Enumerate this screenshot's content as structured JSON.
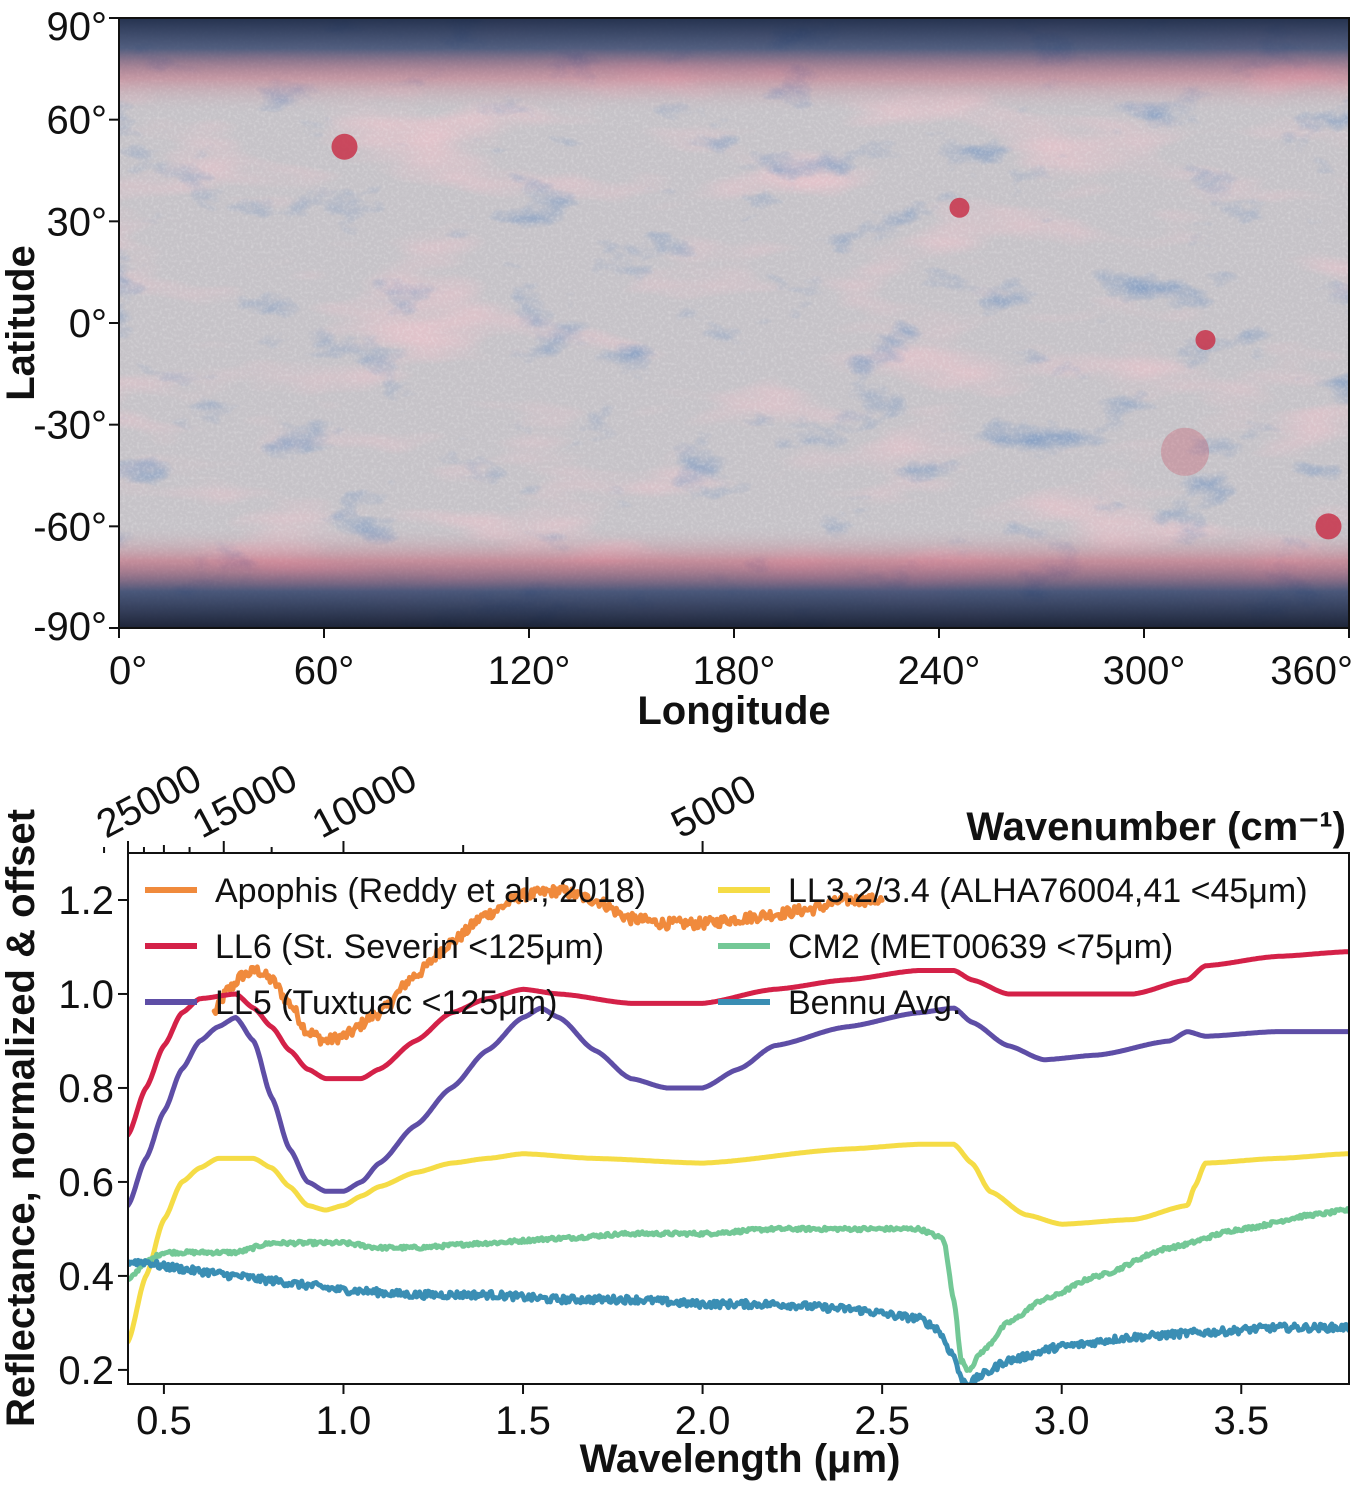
{
  "chart_data": [
    {
      "type": "heatmap",
      "xlabel": "Longitude",
      "ylabel": "Latitude",
      "xlim": [
        0,
        360
      ],
      "ylim": [
        -90,
        90
      ],
      "x_ticks": [
        "0°",
        "60°",
        "120°",
        "180°",
        "240°",
        "300°",
        "360°"
      ],
      "x_tick_values": [
        0,
        60,
        120,
        180,
        240,
        300,
        360
      ],
      "y_ticks": [
        "90°",
        "60°",
        "30°",
        "0°",
        "-30°",
        "-60°",
        "-90°"
      ],
      "y_tick_values": [
        90,
        60,
        30,
        0,
        -30,
        -60,
        -90
      ],
      "colors": {
        "high": "#c8324a",
        "neutral": "#c8c8cc",
        "low": "#3c5a8c",
        "pole": "#1c2a48"
      },
      "red_spots": [
        {
          "lon": 66,
          "lat": 52
        },
        {
          "lon": 246,
          "lat": 34
        },
        {
          "lon": 318,
          "lat": -5
        },
        {
          "lon": 354,
          "lat": -60
        },
        {
          "lon": 312,
          "lat": -38
        }
      ]
    },
    {
      "type": "line",
      "xlabel": "Wavelength (μm)",
      "ylabel": "Reflectance, normalized & offset",
      "top_axis_label": "Wavenumber (cm⁻¹)",
      "xlim": [
        0.4,
        3.8
      ],
      "ylim": [
        0.17,
        1.3
      ],
      "x_ticks": [
        "0.5",
        "1.0",
        "1.5",
        "2.0",
        "2.5",
        "3.0",
        "3.5"
      ],
      "x_tick_values": [
        0.5,
        1.0,
        1.5,
        2.0,
        2.5,
        3.0,
        3.5
      ],
      "y_ticks": [
        "0.2",
        "0.4",
        "0.6",
        "0.8",
        "1.0",
        "1.2"
      ],
      "y_tick_values": [
        0.2,
        0.4,
        0.6,
        0.8,
        1.0,
        1.2
      ],
      "top_ticks": [
        "25000",
        "15000",
        "10000",
        "5000"
      ],
      "top_tick_values": [
        25000,
        15000,
        10000,
        5000
      ],
      "top_minor_ticks": [
        20000,
        7500
      ],
      "legend": "top",
      "series": [
        {
          "name": "Apophis (Reddy et al., 2018)",
          "color": "#f08a3c",
          "noise": 0.012,
          "x": [
            0.64,
            0.68,
            0.72,
            0.76,
            0.8,
            0.85,
            0.9,
            0.95,
            1.0,
            1.1,
            1.2,
            1.3,
            1.4,
            1.5,
            1.6,
            1.7,
            1.8,
            1.9,
            2.0,
            2.1,
            2.2,
            2.3,
            2.4,
            2.5
          ],
          "y": [
            0.96,
            1.01,
            1.04,
            1.05,
            1.03,
            0.98,
            0.92,
            0.9,
            0.91,
            0.96,
            1.04,
            1.11,
            1.17,
            1.21,
            1.22,
            1.2,
            1.16,
            1.15,
            1.15,
            1.16,
            1.17,
            1.18,
            1.2,
            1.2
          ]
        },
        {
          "name": "LL6 (St. Severin <125μm)",
          "color": "#d42148",
          "noise": 0.0,
          "x": [
            0.4,
            0.45,
            0.5,
            0.55,
            0.6,
            0.7,
            0.75,
            0.8,
            0.85,
            0.9,
            0.95,
            1.0,
            1.05,
            1.1,
            1.2,
            1.3,
            1.4,
            1.5,
            1.6,
            1.8,
            2.0,
            2.2,
            2.4,
            2.6,
            2.7,
            2.75,
            2.85,
            3.0,
            3.2,
            3.35,
            3.4,
            3.6,
            3.8
          ],
          "y": [
            0.7,
            0.8,
            0.89,
            0.96,
            0.99,
            1.0,
            0.97,
            0.93,
            0.88,
            0.84,
            0.82,
            0.82,
            0.82,
            0.84,
            0.9,
            0.96,
            0.99,
            1.01,
            1.0,
            0.98,
            0.98,
            1.01,
            1.03,
            1.05,
            1.05,
            1.03,
            1.0,
            1.0,
            1.0,
            1.03,
            1.06,
            1.08,
            1.09
          ]
        },
        {
          "name": "LL5 (Tuxtuac <125μm)",
          "color": "#5e4ea6",
          "noise": 0.0,
          "x": [
            0.4,
            0.45,
            0.5,
            0.55,
            0.6,
            0.65,
            0.7,
            0.75,
            0.8,
            0.85,
            0.9,
            0.95,
            1.0,
            1.05,
            1.1,
            1.2,
            1.3,
            1.4,
            1.5,
            1.55,
            1.6,
            1.7,
            1.8,
            1.9,
            2.0,
            2.1,
            2.2,
            2.4,
            2.6,
            2.7,
            2.75,
            2.85,
            2.95,
            3.1,
            3.3,
            3.35,
            3.4,
            3.6,
            3.8
          ],
          "y": [
            0.55,
            0.65,
            0.75,
            0.84,
            0.9,
            0.93,
            0.95,
            0.9,
            0.78,
            0.67,
            0.6,
            0.58,
            0.58,
            0.6,
            0.64,
            0.72,
            0.8,
            0.88,
            0.95,
            0.97,
            0.95,
            0.88,
            0.82,
            0.8,
            0.8,
            0.84,
            0.89,
            0.93,
            0.96,
            0.97,
            0.94,
            0.89,
            0.86,
            0.87,
            0.9,
            0.92,
            0.91,
            0.92,
            0.92
          ]
        },
        {
          "name": "LL3.2/3.4 (ALHA76004,41 <45μm)",
          "color": "#f5dc46",
          "noise": 0.0,
          "x": [
            0.4,
            0.45,
            0.5,
            0.55,
            0.6,
            0.65,
            0.7,
            0.75,
            0.8,
            0.85,
            0.9,
            0.95,
            1.0,
            1.05,
            1.1,
            1.2,
            1.3,
            1.4,
            1.5,
            1.7,
            2.0,
            2.4,
            2.6,
            2.7,
            2.75,
            2.8,
            2.9,
            3.0,
            3.2,
            3.35,
            3.37,
            3.4,
            3.6,
            3.8
          ],
          "y": [
            0.26,
            0.4,
            0.52,
            0.6,
            0.63,
            0.65,
            0.65,
            0.65,
            0.63,
            0.59,
            0.55,
            0.54,
            0.55,
            0.57,
            0.59,
            0.62,
            0.64,
            0.65,
            0.66,
            0.65,
            0.64,
            0.67,
            0.68,
            0.68,
            0.64,
            0.58,
            0.53,
            0.51,
            0.52,
            0.55,
            0.59,
            0.64,
            0.65,
            0.66
          ]
        },
        {
          "name": "CM2 (MET00639 <75μm)",
          "color": "#73c896",
          "noise": 0.004,
          "x": [
            0.4,
            0.45,
            0.5,
            0.55,
            0.6,
            0.7,
            0.8,
            0.9,
            1.0,
            1.1,
            1.2,
            1.4,
            1.6,
            1.8,
            2.0,
            2.2,
            2.4,
            2.6,
            2.67,
            2.7,
            2.72,
            2.74,
            2.78,
            2.85,
            2.95,
            3.1,
            3.3,
            3.5,
            3.7,
            3.8
          ],
          "y": [
            0.39,
            0.43,
            0.45,
            0.45,
            0.45,
            0.45,
            0.47,
            0.47,
            0.47,
            0.46,
            0.46,
            0.47,
            0.48,
            0.49,
            0.49,
            0.5,
            0.5,
            0.5,
            0.48,
            0.35,
            0.22,
            0.2,
            0.24,
            0.3,
            0.35,
            0.4,
            0.46,
            0.5,
            0.53,
            0.54
          ]
        },
        {
          "name": "Bennu Avg.",
          "color": "#3a8eb4",
          "noise": 0.008,
          "x": [
            0.4,
            0.45,
            0.5,
            0.6,
            0.7,
            0.8,
            0.9,
            1.0,
            1.2,
            1.4,
            1.6,
            1.8,
            2.0,
            2.2,
            2.4,
            2.6,
            2.65,
            2.7,
            2.72,
            2.74,
            2.78,
            2.85,
            3.0,
            3.2,
            3.4,
            3.6,
            3.8
          ],
          "y": [
            0.43,
            0.43,
            0.42,
            0.41,
            0.4,
            0.39,
            0.38,
            0.37,
            0.36,
            0.36,
            0.35,
            0.35,
            0.34,
            0.34,
            0.33,
            0.31,
            0.29,
            0.23,
            0.18,
            0.17,
            0.19,
            0.22,
            0.25,
            0.27,
            0.28,
            0.29,
            0.29
          ]
        }
      ]
    }
  ]
}
